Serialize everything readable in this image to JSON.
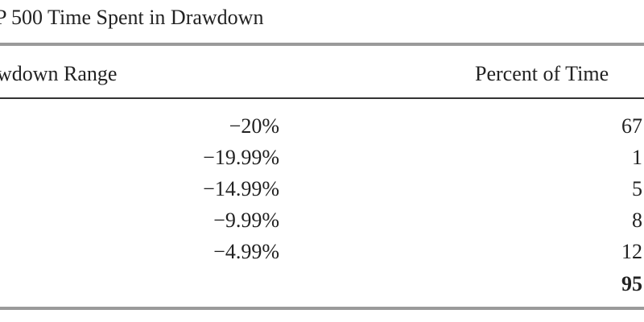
{
  "title": "P 500 Time Spent in Drawdown",
  "table": {
    "header": [
      "wdown Range",
      "Percent of Time"
    ],
    "rows": [
      [
        "−20%",
        "67"
      ],
      [
        "−19.99%",
        "1"
      ],
      [
        "−14.99%",
        "5"
      ],
      [
        "−9.99%",
        "8"
      ],
      [
        "−4.99%",
        "12"
      ]
    ],
    "total": "95"
  }
}
